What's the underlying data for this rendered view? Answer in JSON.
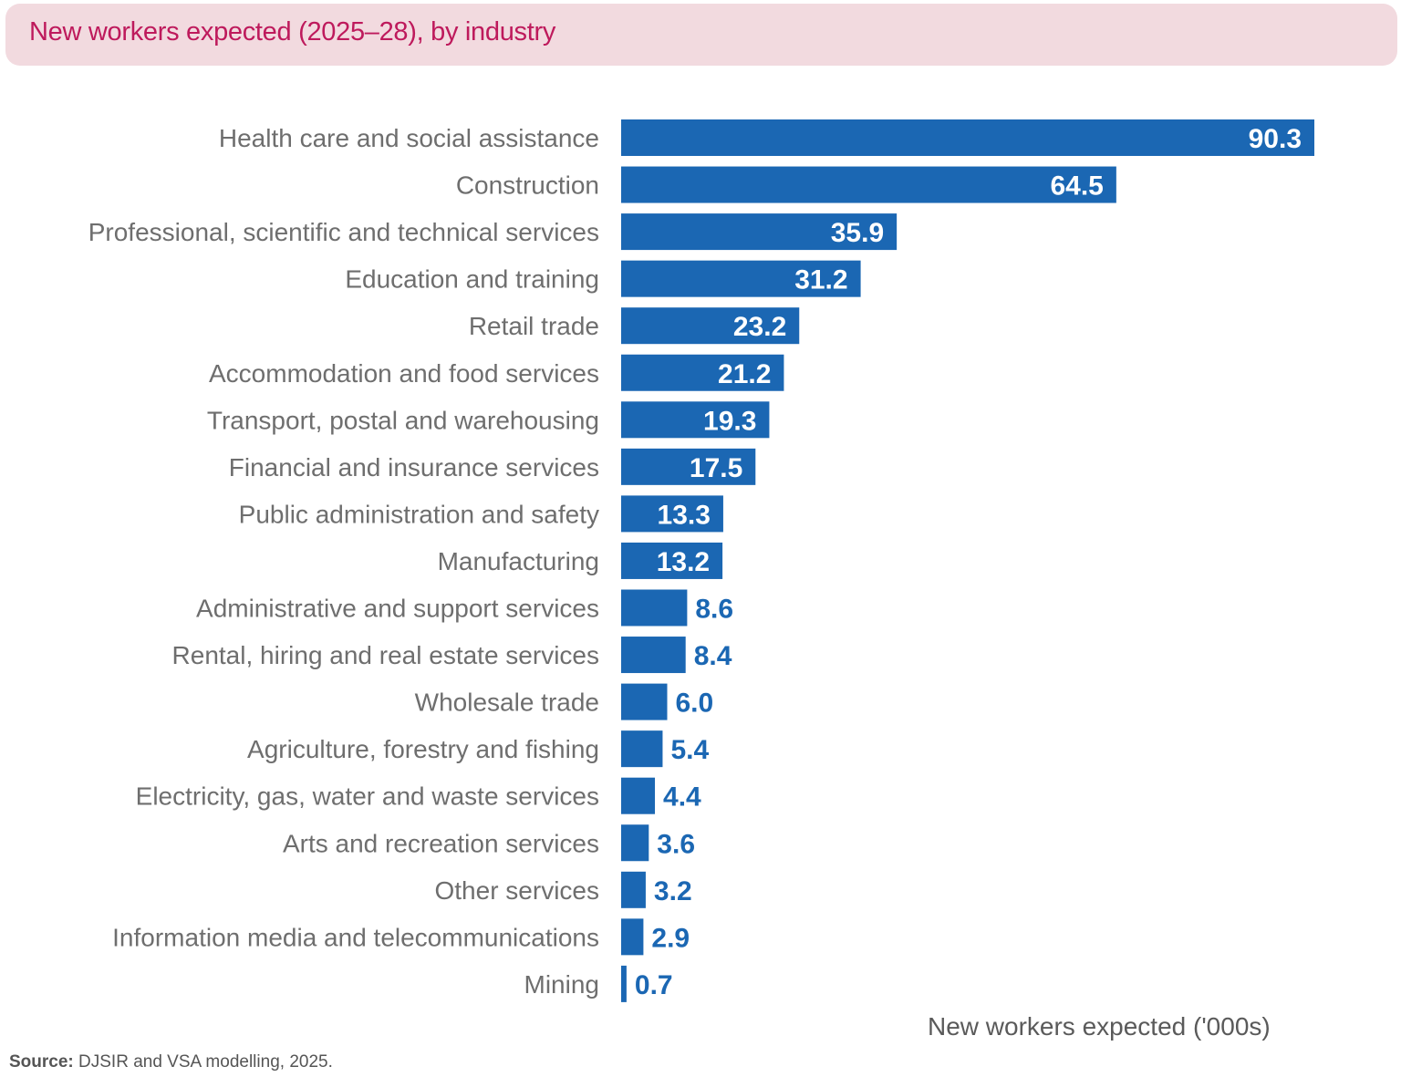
{
  "chart_data": {
    "type": "bar",
    "orientation": "horizontal",
    "title": "New workers expected (2025–28), by industry",
    "xlabel": "New workers expected ('000s)",
    "ylabel": "",
    "xlim": [
      0,
      90.3
    ],
    "grid": false,
    "categories": [
      "Health care and social assistance",
      "Construction",
      "Professional, scientific and technical services",
      "Education and training",
      "Retail trade",
      "Accommodation and food services",
      "Transport, postal and warehousing",
      "Financial and insurance services",
      "Public administration and safety",
      "Manufacturing",
      "Administrative and support services",
      "Rental, hiring and real estate services",
      "Wholesale trade",
      "Agriculture, forestry and fishing",
      "Electricity, gas, water and waste services",
      "Arts and recreation services",
      "Other services",
      "Information media and telecommunications",
      "Mining"
    ],
    "values": [
      90.3,
      64.5,
      35.9,
      31.2,
      23.2,
      21.2,
      19.3,
      17.5,
      13.3,
      13.2,
      8.6,
      8.4,
      6.0,
      5.4,
      4.4,
      3.6,
      3.2,
      2.9,
      0.7
    ],
    "colors": {
      "bar": "#1b67b3",
      "title": "#be1a5c",
      "banner": "#f2dadf"
    }
  },
  "source": {
    "label": "Source:",
    "text": " DJSIR and VSA modelling, 2025."
  }
}
